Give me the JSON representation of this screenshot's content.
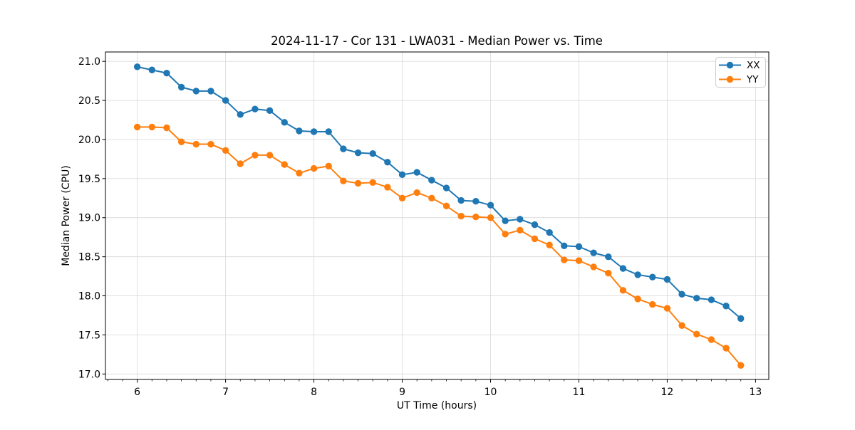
{
  "chart_data": {
    "type": "line",
    "title": "2024-11-17 - Cor 131 - LWA031 - Median Power vs. Time",
    "xlabel": "UT Time (hours)",
    "ylabel": "Median Power (CPU)",
    "xlim": [
      5.64,
      13.15
    ],
    "ylim": [
      16.93,
      21.12
    ],
    "xtick_values": [
      6,
      7,
      8,
      9,
      10,
      11,
      12,
      13
    ],
    "xtick_labels": [
      "6",
      "7",
      "8",
      "9",
      "10",
      "11",
      "12",
      "13"
    ],
    "ytick_values": [
      17.0,
      17.5,
      18.0,
      18.5,
      19.0,
      19.5,
      20.0,
      20.5,
      21.0
    ],
    "ytick_labels": [
      "17.0",
      "17.5",
      "18.0",
      "18.5",
      "19.0",
      "19.5",
      "20.0",
      "20.5",
      "21.0"
    ],
    "x_minor_tick_step": 0.1666667,
    "grid": true,
    "legend": {
      "position": "upper right"
    },
    "x": [
      6.0,
      6.1667,
      6.3333,
      6.5,
      6.6667,
      6.8333,
      7.0,
      7.1667,
      7.3333,
      7.5,
      7.6667,
      7.8333,
      8.0,
      8.1667,
      8.3333,
      8.5,
      8.6667,
      8.8333,
      9.0,
      9.1667,
      9.3333,
      9.5,
      9.6667,
      9.8333,
      10.0,
      10.1667,
      10.3333,
      10.5,
      10.6667,
      10.8333,
      11.0,
      11.1667,
      11.3333,
      11.5,
      11.6667,
      11.8333,
      12.0,
      12.1667,
      12.3333,
      12.5,
      12.6667,
      12.8333
    ],
    "series": [
      {
        "name": "XX",
        "color": "#1f77b4",
        "values": [
          20.93,
          20.89,
          20.85,
          20.67,
          20.62,
          20.62,
          20.5,
          20.32,
          20.39,
          20.37,
          20.22,
          20.11,
          20.1,
          20.1,
          19.88,
          19.83,
          19.82,
          19.71,
          19.55,
          19.58,
          19.48,
          19.38,
          19.22,
          19.21,
          19.16,
          18.96,
          18.98,
          18.91,
          18.81,
          18.64,
          18.63,
          18.55,
          18.5,
          18.35,
          18.27,
          18.24,
          18.21,
          18.02,
          17.97,
          17.95,
          17.87,
          17.71
        ]
      },
      {
        "name": "YY",
        "color": "#ff7f0e",
        "values": [
          20.16,
          20.16,
          20.15,
          19.97,
          19.94,
          19.94,
          19.86,
          19.69,
          19.8,
          19.8,
          19.68,
          19.57,
          19.63,
          19.66,
          19.47,
          19.44,
          19.45,
          19.39,
          19.25,
          19.32,
          19.25,
          19.15,
          19.02,
          19.01,
          19.0,
          18.79,
          18.84,
          18.73,
          18.65,
          18.46,
          18.45,
          18.37,
          18.29,
          18.07,
          17.96,
          17.89,
          17.84,
          17.62,
          17.51,
          17.44,
          17.33,
          17.11
        ]
      }
    ]
  },
  "style": {
    "grid_color": "#dcdcdc",
    "spine_color": "#000000",
    "legend_border_color": "#cccccc",
    "background": "#ffffff"
  }
}
